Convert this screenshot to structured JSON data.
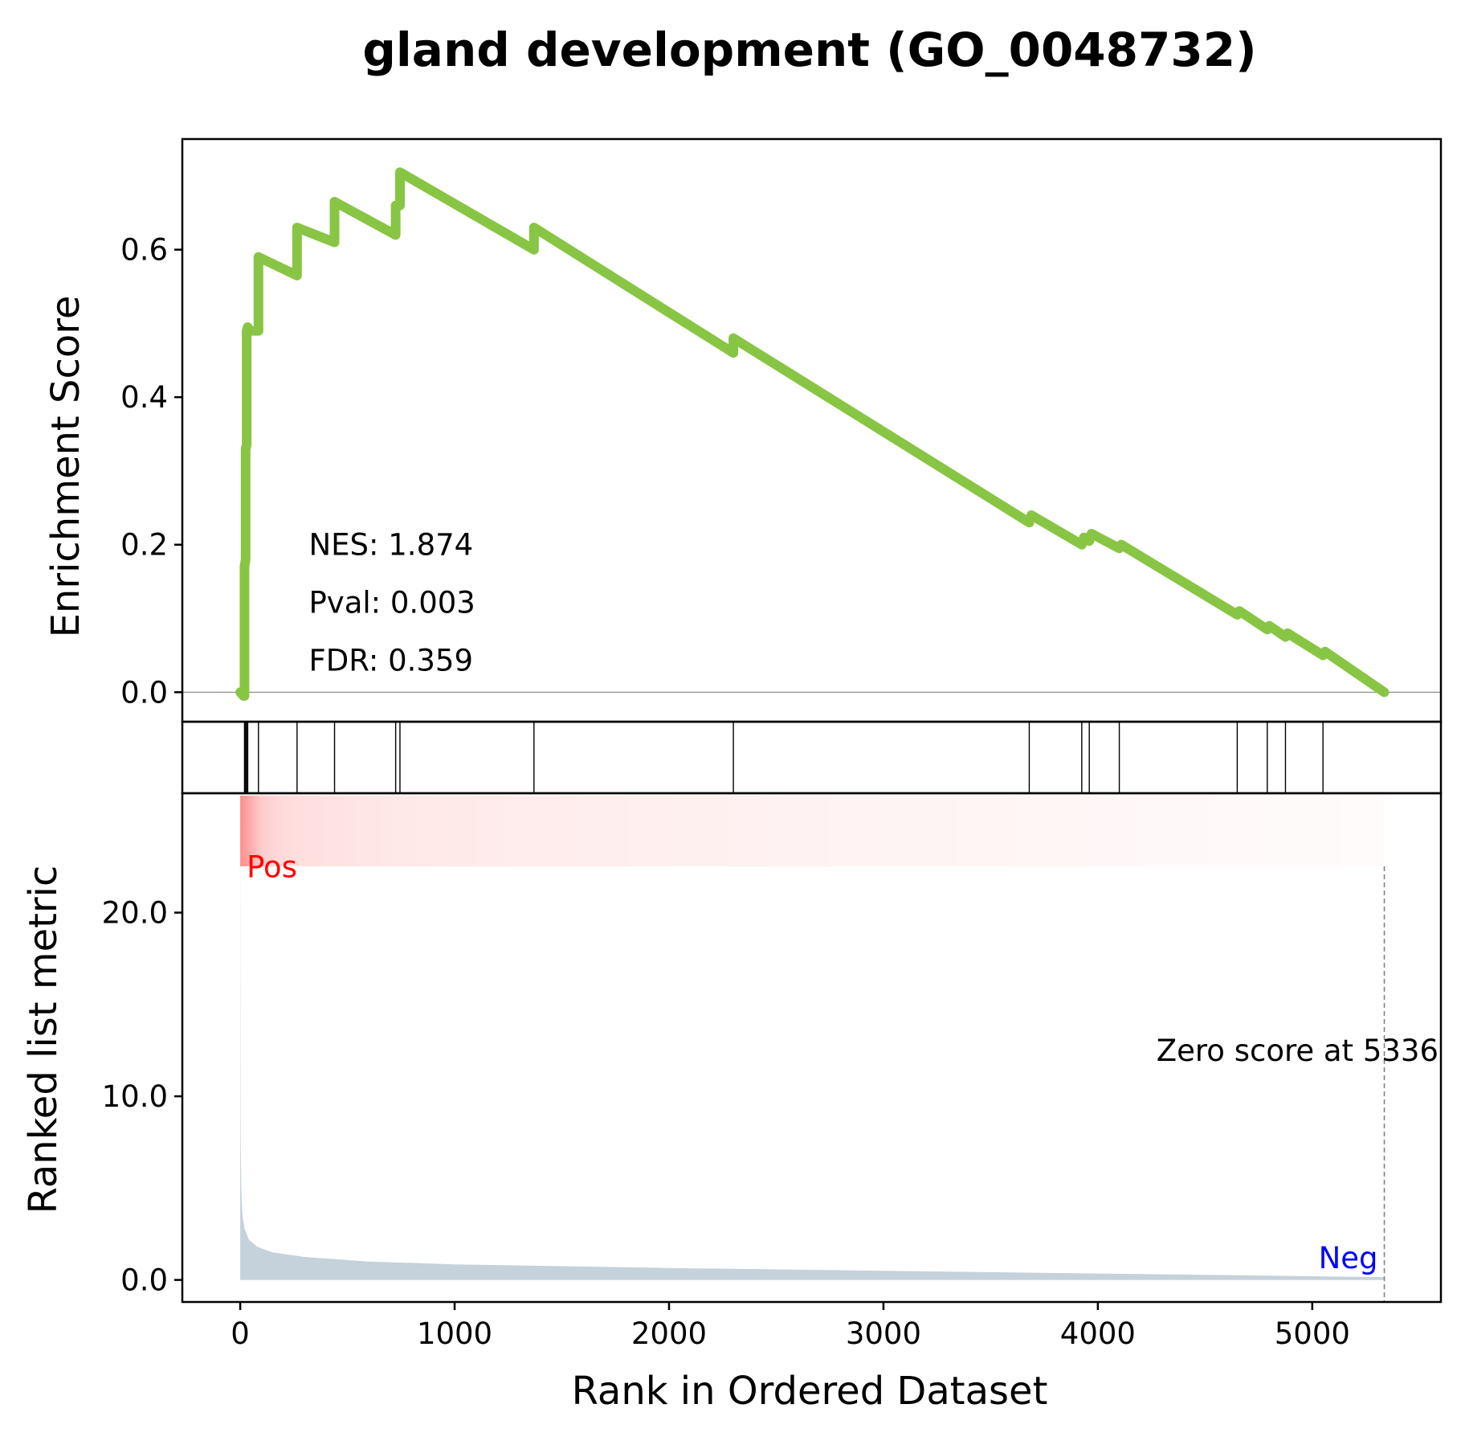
{
  "chart_data": {
    "type": "line",
    "title": "gland development (GO_0048732)",
    "xlabel": "Rank in Ordered Dataset",
    "xlim": [
      -270,
      5600
    ],
    "xticks": [
      0,
      1000,
      2000,
      3000,
      4000,
      5000
    ],
    "xtick_labels": [
      "0",
      "1000",
      "2000",
      "3000",
      "4000",
      "5000"
    ],
    "grid": false,
    "enrichment": {
      "ylabel": "Enrichment Score",
      "ylim": [
        -0.04,
        0.75
      ],
      "yticks": [
        0.0,
        0.2,
        0.4,
        0.6
      ],
      "ytick_labels": [
        "0.0",
        "0.2",
        "0.4",
        "0.6"
      ],
      "line_color": "#88c544",
      "stats": [
        "NES: 1.874",
        "Pval: 0.003",
        "FDR: 0.359"
      ],
      "x": [
        0,
        15,
        20,
        20,
        25,
        25,
        30,
        30,
        35,
        35,
        85,
        85,
        265,
        265,
        440,
        440,
        725,
        725,
        745,
        745,
        1370,
        1370,
        2300,
        2300,
        3680,
        3690,
        3925,
        3935,
        3960,
        3970,
        4100,
        4110,
        4650,
        4660,
        4790,
        4800,
        4875,
        4885,
        5050,
        5060,
        5336
      ],
      "y": [
        0.0,
        -0.005,
        -0.005,
        0.17,
        0.18,
        0.33,
        0.335,
        0.49,
        0.495,
        0.49,
        0.49,
        0.59,
        0.565,
        0.63,
        0.61,
        0.665,
        0.62,
        0.66,
        0.66,
        0.705,
        0.6,
        0.63,
        0.46,
        0.48,
        0.23,
        0.24,
        0.2,
        0.21,
        0.205,
        0.215,
        0.195,
        0.2,
        0.105,
        0.11,
        0.085,
        0.09,
        0.075,
        0.08,
        0.05,
        0.055,
        0.0
      ]
    },
    "hits": [
      20,
      25,
      30,
      35,
      85,
      265,
      440,
      725,
      745,
      1370,
      2300,
      3680,
      3925,
      3960,
      4100,
      4650,
      4790,
      4875,
      5050
    ],
    "ranked_metric": {
      "ylabel": "Ranked list metric",
      "ylim": [
        -1.2,
        26.5
      ],
      "yticks": [
        0.0,
        10.0,
        20.0
      ],
      "ytick_labels": [
        "0.0",
        "10.0",
        "20.0"
      ],
      "fill_color": "#c5d1db",
      "x": [
        0,
        2,
        5,
        10,
        20,
        40,
        80,
        150,
        300,
        600,
        1000,
        2000,
        3000,
        4000,
        4500,
        5000,
        5336
      ],
      "y": [
        25.5,
        8.0,
        5.0,
        3.6,
        2.8,
        2.2,
        1.8,
        1.5,
        1.25,
        1.0,
        0.85,
        0.65,
        0.5,
        0.35,
        0.28,
        0.2,
        0.15
      ],
      "pos_label": "Pos",
      "neg_label": "Neg",
      "pos_color": "#ff0000",
      "neg_color": "#0000ff",
      "zero_score_label": "Zero score at 5336",
      "zero_score_rank": 5336
    },
    "heatmap_color": "#ff0000",
    "heatmap_intensity": {
      "x": [
        0,
        100,
        200,
        450,
        750,
        1500,
        2680,
        4180,
        5336
      ],
      "alpha": [
        0.45,
        0.2,
        0.14,
        0.11,
        0.09,
        0.07,
        0.05,
        0.03,
        0.015
      ]
    }
  }
}
